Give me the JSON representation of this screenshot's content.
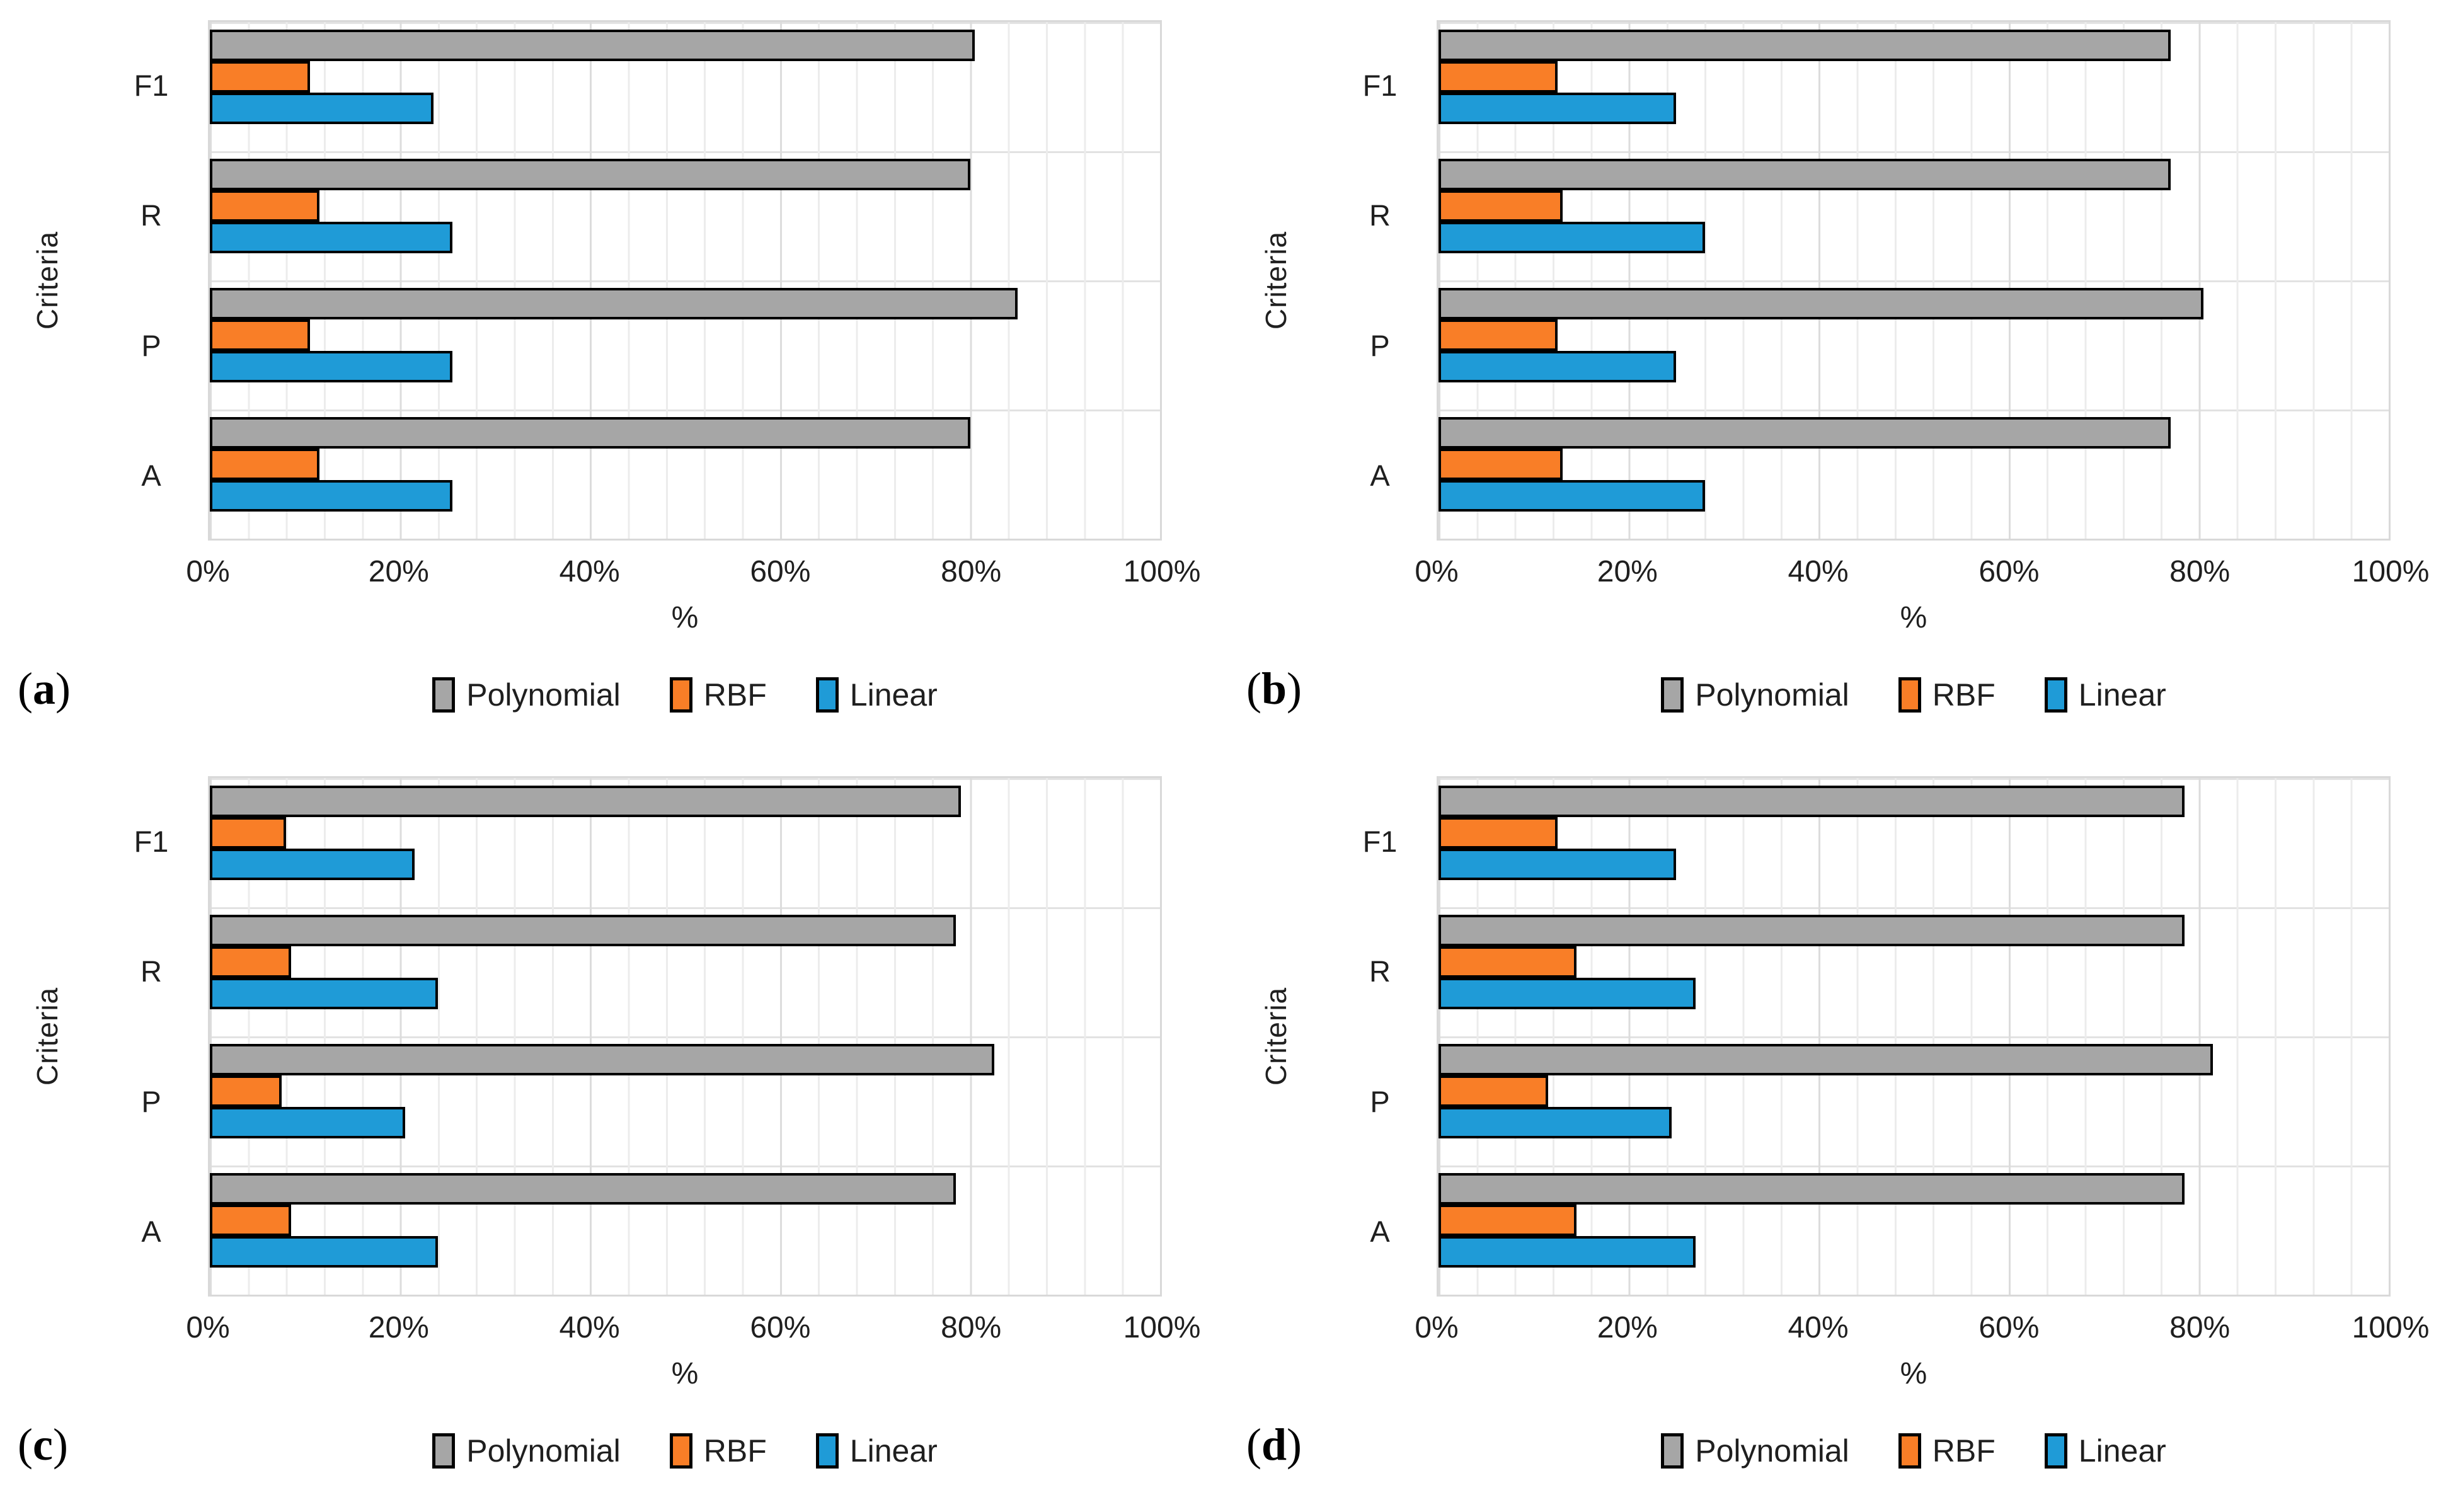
{
  "figure": {
    "background": "#ffffff",
    "text_color": "#1f1f1f",
    "gridline_color": "#e2e2e2",
    "plot_border_color": "#d9d9d9",
    "bar_border_color": "#000000"
  },
  "legend_labels": [
    "Polynomial",
    "RBF",
    "Linear"
  ],
  "series_colors": {
    "Polynomial": "#a6a6a6",
    "RBF": "#f97e27",
    "Linear": "#1f9bd7"
  },
  "chart_data": [
    {
      "type": "bar",
      "orientation": "horizontal",
      "panel_label": "(a)",
      "ylabel": "Criteria",
      "xlabel": "%",
      "xlim": [
        0,
        100
      ],
      "x_ticks": [
        "0%",
        "20%",
        "40%",
        "60%",
        "80%",
        "100%"
      ],
      "categories": [
        "F1",
        "R",
        "P",
        "A"
      ],
      "legend_position": "bottom",
      "grid": true,
      "series": [
        {
          "name": "Polynomial",
          "color": "#a6a6a6",
          "values": [
            80,
            79.5,
            84.5,
            79.5
          ]
        },
        {
          "name": "RBF",
          "color": "#f97e27",
          "values": [
            10,
            11,
            10,
            11
          ]
        },
        {
          "name": "Linear",
          "color": "#1f9bd7",
          "values": [
            23,
            25,
            25,
            25
          ]
        }
      ]
    },
    {
      "type": "bar",
      "orientation": "horizontal",
      "panel_label": "(b)",
      "ylabel": "Criteria",
      "xlabel": "%",
      "xlim": [
        0,
        100
      ],
      "x_ticks": [
        "0%",
        "20%",
        "40%",
        "60%",
        "80%",
        "100%"
      ],
      "categories": [
        "F1",
        "R",
        "P",
        "A"
      ],
      "legend_position": "bottom",
      "grid": true,
      "series": [
        {
          "name": "Polynomial",
          "color": "#a6a6a6",
          "values": [
            76.5,
            76.5,
            80,
            76.5
          ]
        },
        {
          "name": "RBF",
          "color": "#f97e27",
          "values": [
            12,
            12.5,
            12,
            12.5
          ]
        },
        {
          "name": "Linear",
          "color": "#1f9bd7",
          "values": [
            24.5,
            27.5,
            24.5,
            27.5
          ]
        }
      ]
    },
    {
      "type": "bar",
      "orientation": "horizontal",
      "panel_label": "(c)",
      "ylabel": "Criteria",
      "xlabel": "%",
      "xlim": [
        0,
        100
      ],
      "x_ticks": [
        "0%",
        "20%",
        "40%",
        "60%",
        "80%",
        "100%"
      ],
      "categories": [
        "F1",
        "R",
        "P",
        "A"
      ],
      "legend_position": "bottom",
      "grid": true,
      "series": [
        {
          "name": "Polynomial",
          "color": "#a6a6a6",
          "values": [
            78.5,
            78,
            82,
            78
          ]
        },
        {
          "name": "RBF",
          "color": "#f97e27",
          "values": [
            7.5,
            8,
            7,
            8
          ]
        },
        {
          "name": "Linear",
          "color": "#1f9bd7",
          "values": [
            21,
            23.5,
            20,
            23.5
          ]
        }
      ]
    },
    {
      "type": "bar",
      "orientation": "horizontal",
      "panel_label": "(d)",
      "ylabel": "Criteria",
      "xlabel": "%",
      "xlim": [
        0,
        100
      ],
      "x_ticks": [
        "0%",
        "20%",
        "40%",
        "60%",
        "80%",
        "100%"
      ],
      "categories": [
        "F1",
        "R",
        "P",
        "A"
      ],
      "legend_position": "bottom",
      "grid": true,
      "series": [
        {
          "name": "Polynomial",
          "color": "#a6a6a6",
          "values": [
            78,
            78,
            81,
            78
          ]
        },
        {
          "name": "RBF",
          "color": "#f97e27",
          "values": [
            12,
            14,
            11,
            14
          ]
        },
        {
          "name": "Linear",
          "color": "#1f9bd7",
          "values": [
            24.5,
            26.5,
            24,
            26.5
          ]
        }
      ]
    }
  ]
}
